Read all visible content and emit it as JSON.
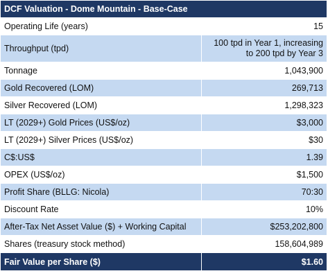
{
  "title": "DCF Valuation - Dome Mountain - Base-Case",
  "rows": [
    {
      "label": "Operating Life (years)",
      "value": "15"
    },
    {
      "label": "Throughput (tpd)",
      "value_line1": "100 tpd in Year 1, increasing",
      "value_line2": "to 200 tpd by Year 3"
    },
    {
      "label": "Tonnage",
      "value": "1,043,900"
    },
    {
      "label": "Gold Recovered (LOM)",
      "value": "269,713"
    },
    {
      "label": "Silver Recovered (LOM)",
      "value": "1,298,323"
    },
    {
      "label": "LT (2029+) Gold Prices (US$/oz)",
      "value": "$3,000"
    },
    {
      "label": "LT (2029+) Silver Prices (US$/oz)",
      "value": "$30"
    },
    {
      "label": "C$:US$",
      "value": "1.39"
    },
    {
      "label": "OPEX (US$/oz)",
      "value": "$1,500"
    },
    {
      "label": "Profit Share (BLLG: Nicola)",
      "value": "70:30"
    },
    {
      "label": "Discount Rate",
      "value": "10%"
    },
    {
      "label": "After-Tax Net Asset Value ($) + Working Capital",
      "value": "$253,202,800"
    },
    {
      "label": "Shares (treasury stock method)",
      "value": "158,604,989"
    }
  ],
  "footer": {
    "label": "Fair Value per Share ($)",
    "value": "$1.60"
  },
  "colors": {
    "header_bg": "#1f3864",
    "band_bg": "#c5d9f1",
    "row_bg": "#ffffff"
  }
}
